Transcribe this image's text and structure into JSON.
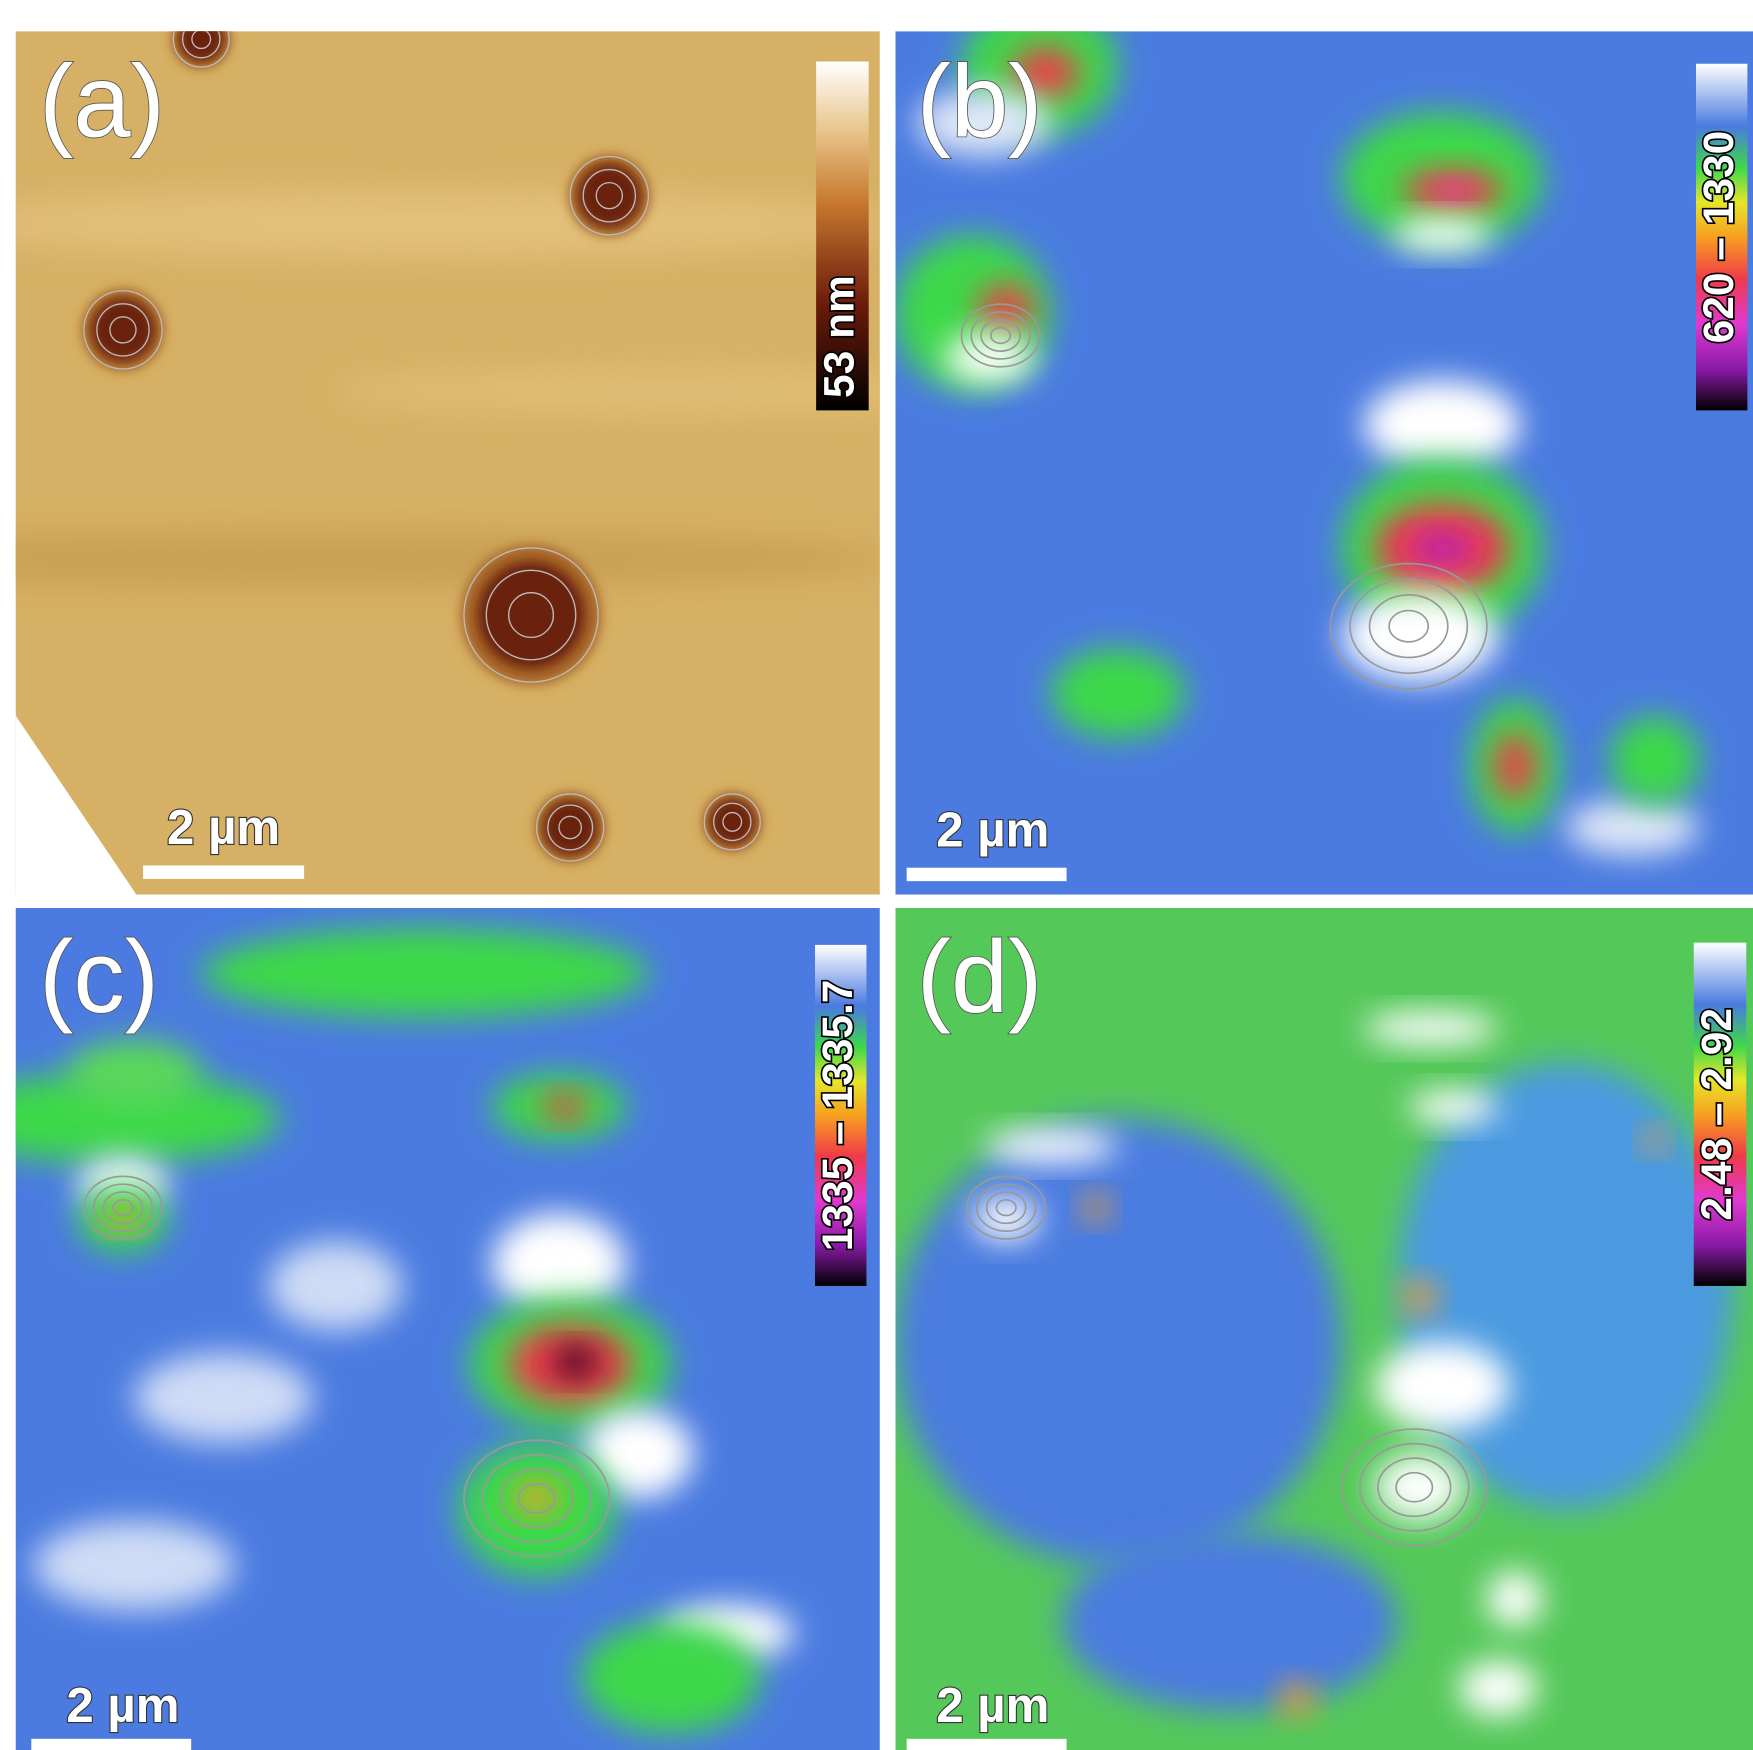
{
  "panels": [
    {
      "label": "(a)",
      "colorbar": "53 nm",
      "scale_bar": "2 µm"
    },
    {
      "label": "(b)",
      "colorbar": "620 – 1330",
      "scale_bar": "2 µm"
    },
    {
      "label": "(c)",
      "colorbar": "1335 – 1335.7",
      "scale_bar": "2 µm"
    },
    {
      "label": "(d)",
      "colorbar": "2.48 – 2.92",
      "scale_bar": "2 µm"
    }
  ]
}
